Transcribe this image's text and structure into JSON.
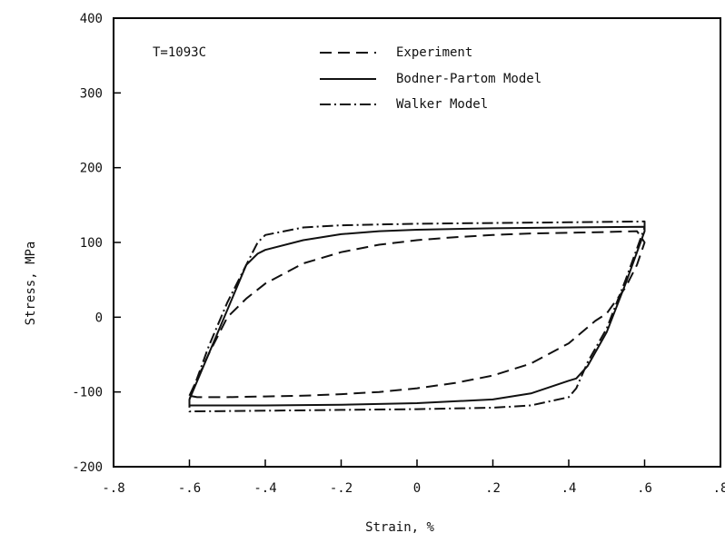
{
  "chart_data": {
    "type": "line",
    "title": "",
    "annotation": "T=1093C",
    "xlabel": "Strain, %",
    "ylabel": "Stress, MPa",
    "xlim": [
      -0.8,
      0.8
    ],
    "ylim": [
      -200,
      400
    ],
    "grid": false,
    "legend_position": "top",
    "xticks": [
      {
        "v": -0.8,
        "label": "-.8"
      },
      {
        "v": -0.6,
        "label": "-.6"
      },
      {
        "v": -0.4,
        "label": "-.4"
      },
      {
        "v": -0.2,
        "label": "-.2"
      },
      {
        "v": 0,
        "label": "0"
      },
      {
        "v": 0.2,
        "label": ".2"
      },
      {
        "v": 0.4,
        "label": ".4"
      },
      {
        "v": 0.6,
        "label": ".6"
      },
      {
        "v": 0.8,
        "label": ".8"
      }
    ],
    "yticks": [
      {
        "v": -200,
        "label": "-200"
      },
      {
        "v": -100,
        "label": "-100"
      },
      {
        "v": 0,
        "label": "0"
      },
      {
        "v": 100,
        "label": "100"
      },
      {
        "v": 200,
        "label": "200"
      },
      {
        "v": 300,
        "label": "300"
      },
      {
        "v": 400,
        "label": "400"
      }
    ],
    "series": [
      {
        "name": "Experiment",
        "style": "dashed",
        "color": "#111111",
        "x": [
          -0.6,
          -0.55,
          -0.5,
          -0.45,
          -0.4,
          -0.3,
          -0.2,
          -0.1,
          0.0,
          0.1,
          0.2,
          0.3,
          0.4,
          0.5,
          0.58,
          0.6,
          0.58,
          0.55,
          0.5,
          0.47,
          0.4,
          0.3,
          0.2,
          0.1,
          0.0,
          -0.1,
          -0.2,
          -0.3,
          -0.4,
          -0.5,
          -0.58,
          -0.6
        ],
        "y": [
          -105,
          -50,
          0,
          25,
          45,
          72,
          87,
          97,
          103,
          107,
          110,
          112,
          113,
          114,
          115,
          100,
          70,
          40,
          5,
          -5,
          -35,
          -62,
          -78,
          -88,
          -95,
          -100,
          -103,
          -105,
          -106,
          -107,
          -107,
          -105
        ]
      },
      {
        "name": "Bodner-Partom Model",
        "style": "solid",
        "color": "#111111",
        "x": [
          -0.6,
          -0.55,
          -0.5,
          -0.45,
          -0.42,
          -0.4,
          -0.3,
          -0.2,
          -0.1,
          0.0,
          0.2,
          0.4,
          0.6,
          0.6,
          0.55,
          0.5,
          0.45,
          0.42,
          0.4,
          0.3,
          0.2,
          0.0,
          -0.2,
          -0.4,
          -0.6,
          -0.6
        ],
        "y": [
          -110,
          -50,
          10,
          70,
          85,
          90,
          103,
          111,
          115,
          117,
          119,
          120,
          121,
          115,
          45,
          -20,
          -65,
          -82,
          -85,
          -102,
          -110,
          -115,
          -117,
          -118,
          -118,
          -110
        ]
      },
      {
        "name": "Walker Model",
        "style": "dashdot",
        "color": "#111111",
        "x": [
          -0.6,
          -0.55,
          -0.5,
          -0.45,
          -0.42,
          -0.4,
          -0.3,
          -0.2,
          0.0,
          0.2,
          0.4,
          0.6,
          0.6,
          0.55,
          0.5,
          0.45,
          0.42,
          0.4,
          0.3,
          0.2,
          0.0,
          -0.2,
          -0.4,
          -0.6,
          -0.6
        ],
        "y": [
          -110,
          -40,
          20,
          70,
          100,
          110,
          120,
          123,
          125,
          126,
          127,
          128,
          120,
          50,
          -15,
          -60,
          -95,
          -107,
          -118,
          -121,
          -123,
          -124,
          -125,
          -126,
          -110
        ]
      }
    ]
  }
}
